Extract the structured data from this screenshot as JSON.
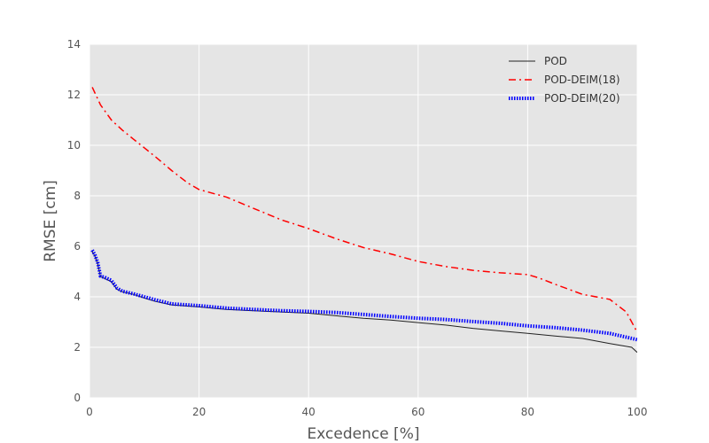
{
  "chart_data": {
    "type": "line",
    "title": "",
    "xlabel": "Excedence [%]",
    "ylabel": "RMSE [cm]",
    "xlim": [
      0,
      100
    ],
    "ylim": [
      0,
      14
    ],
    "xticks": [
      0,
      20,
      40,
      60,
      80,
      100
    ],
    "yticks": [
      0,
      2,
      4,
      6,
      8,
      10,
      12,
      14
    ],
    "grid": true,
    "background": "#e5e5e5",
    "legend_position": "top-right",
    "series": [
      {
        "name": "POD",
        "color": "#222222",
        "style": "solid",
        "x": [
          0.5,
          1,
          1.5,
          2,
          3,
          4,
          5,
          6,
          8,
          10,
          12,
          15,
          20,
          25,
          30,
          35,
          40,
          45,
          50,
          55,
          60,
          65,
          70,
          75,
          80,
          85,
          90,
          95,
          99,
          100
        ],
        "y": [
          5.8,
          5.6,
          5.3,
          4.8,
          4.7,
          4.6,
          4.3,
          4.2,
          4.1,
          3.95,
          3.82,
          3.68,
          3.6,
          3.5,
          3.45,
          3.4,
          3.35,
          3.25,
          3.15,
          3.08,
          2.98,
          2.88,
          2.75,
          2.65,
          2.55,
          2.45,
          2.35,
          2.15,
          2.0,
          1.8
        ]
      },
      {
        "name": "POD-DEIM(18)",
        "color": "#ff0000",
        "style": "dashdot",
        "x": [
          0.5,
          2,
          4,
          6,
          8,
          10,
          12,
          15,
          18,
          20,
          25,
          30,
          35,
          40,
          45,
          50,
          55,
          60,
          65,
          70,
          75,
          80,
          82,
          85,
          90,
          95,
          98,
          100
        ],
        "y": [
          12.3,
          11.6,
          11.0,
          10.6,
          10.25,
          9.9,
          9.55,
          9.0,
          8.5,
          8.25,
          7.95,
          7.5,
          7.05,
          6.7,
          6.3,
          5.95,
          5.7,
          5.4,
          5.2,
          5.05,
          4.95,
          4.88,
          4.75,
          4.5,
          4.1,
          3.9,
          3.4,
          2.6
        ]
      },
      {
        "name": "POD-DEIM(20)",
        "color": "#0000ff",
        "style": "dotted",
        "x": [
          0.5,
          1,
          1.5,
          2,
          3,
          4,
          5,
          6,
          8,
          10,
          12,
          15,
          20,
          25,
          30,
          35,
          40,
          45,
          50,
          55,
          60,
          65,
          70,
          75,
          80,
          85,
          90,
          95,
          100
        ],
        "y": [
          5.85,
          5.65,
          5.35,
          4.82,
          4.75,
          4.65,
          4.35,
          4.22,
          4.12,
          4.0,
          3.88,
          3.72,
          3.65,
          3.55,
          3.5,
          3.45,
          3.42,
          3.38,
          3.3,
          3.22,
          3.15,
          3.1,
          3.02,
          2.95,
          2.85,
          2.78,
          2.68,
          2.55,
          2.3
        ]
      }
    ]
  }
}
